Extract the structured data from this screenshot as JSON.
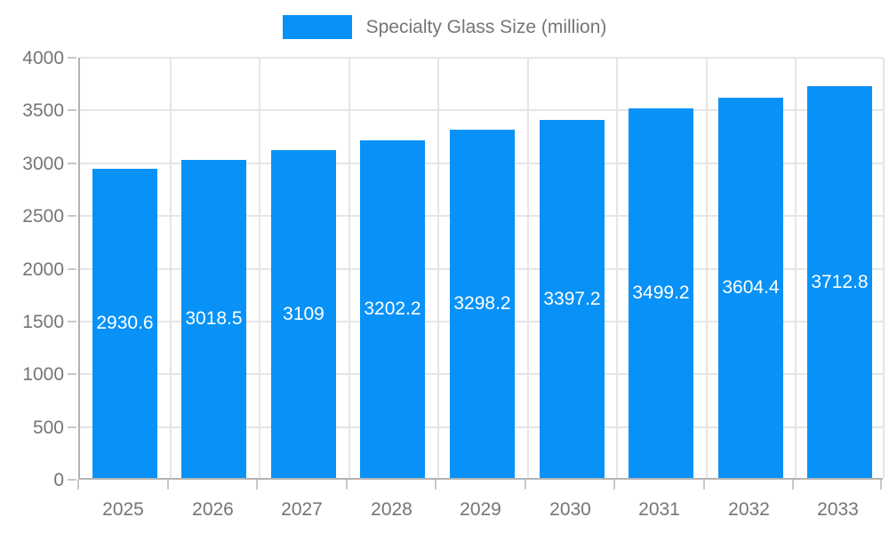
{
  "chart_data": {
    "type": "bar",
    "title": "",
    "legend": {
      "label": "Specialty Glass Size (million)",
      "position": "top"
    },
    "categories": [
      "2025",
      "2026",
      "2027",
      "2028",
      "2029",
      "2030",
      "2031",
      "2032",
      "2033"
    ],
    "series": [
      {
        "name": "Specialty Glass Size (million)",
        "values": [
          2930.6,
          3018.5,
          3109,
          3202.2,
          3298.2,
          3397.2,
          3499.2,
          3604.4,
          3712.8
        ]
      }
    ],
    "value_labels": [
      "2930.6",
      "3018.5",
      "3109",
      "3202.2",
      "3298.2",
      "3397.2",
      "3499.2",
      "3604.4",
      "3712.8"
    ],
    "xlabel": "",
    "ylabel": "",
    "ylim": [
      0,
      4000
    ],
    "ytick_step": 500,
    "ytick_labels": [
      "0",
      "500",
      "1000",
      "1500",
      "2000",
      "2500",
      "3000",
      "3500",
      "4000"
    ],
    "grid": true,
    "colors": {
      "bar": "#0892f8",
      "grid": "#e5e5e5",
      "axis": "#b3b3b3",
      "tick": "#c9c9c9",
      "axis_text": "#757575",
      "value_label_text": "#ffffff",
      "background": "#ffffff"
    }
  }
}
